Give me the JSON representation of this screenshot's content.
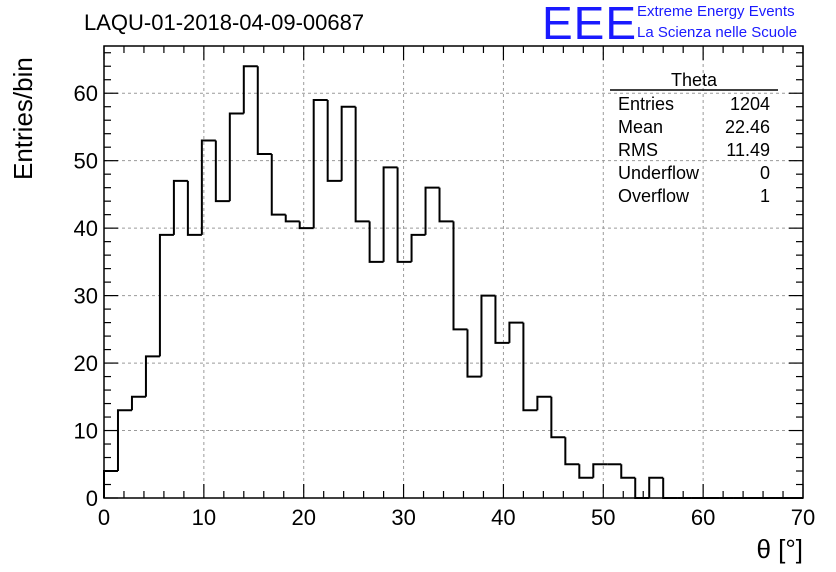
{
  "chart_data": {
    "type": "histogram",
    "title": "LAQU-01-2018-04-09-00687",
    "xlabel": "θ [°]",
    "ylabel": "Entries/bin",
    "xlim": [
      0,
      70
    ],
    "ylim": [
      0,
      67
    ],
    "bin_width": 1.4,
    "x_ticks": [
      "0",
      "10",
      "20",
      "30",
      "40",
      "50",
      "60",
      "70"
    ],
    "y_ticks": [
      "0",
      "10",
      "20",
      "30",
      "40",
      "50",
      "60"
    ],
    "grid": true,
    "values": [
      4,
      13,
      15,
      21,
      39,
      47,
      39,
      53,
      44,
      57,
      64,
      51,
      42,
      41,
      40,
      59,
      47,
      58,
      41,
      35,
      49,
      35,
      39,
      46,
      41,
      25,
      18,
      30,
      23,
      26,
      13,
      15,
      9,
      5,
      3,
      5,
      5,
      3,
      0,
      3,
      0,
      0,
      0,
      0,
      0,
      0,
      0,
      0,
      0,
      0
    ],
    "stats_box": {
      "title": "Theta",
      "rows": [
        {
          "label": "Entries",
          "value": "1204"
        },
        {
          "label": "Mean",
          "value": "22.46"
        },
        {
          "label": "RMS",
          "value": "11.49"
        },
        {
          "label": "Underflow",
          "value": "0"
        },
        {
          "label": "Overflow",
          "value": "1"
        }
      ]
    }
  },
  "logo": {
    "mark": "EEE",
    "line1": "Extreme Energy Events",
    "line2": "La Scienza nelle Scuole"
  }
}
